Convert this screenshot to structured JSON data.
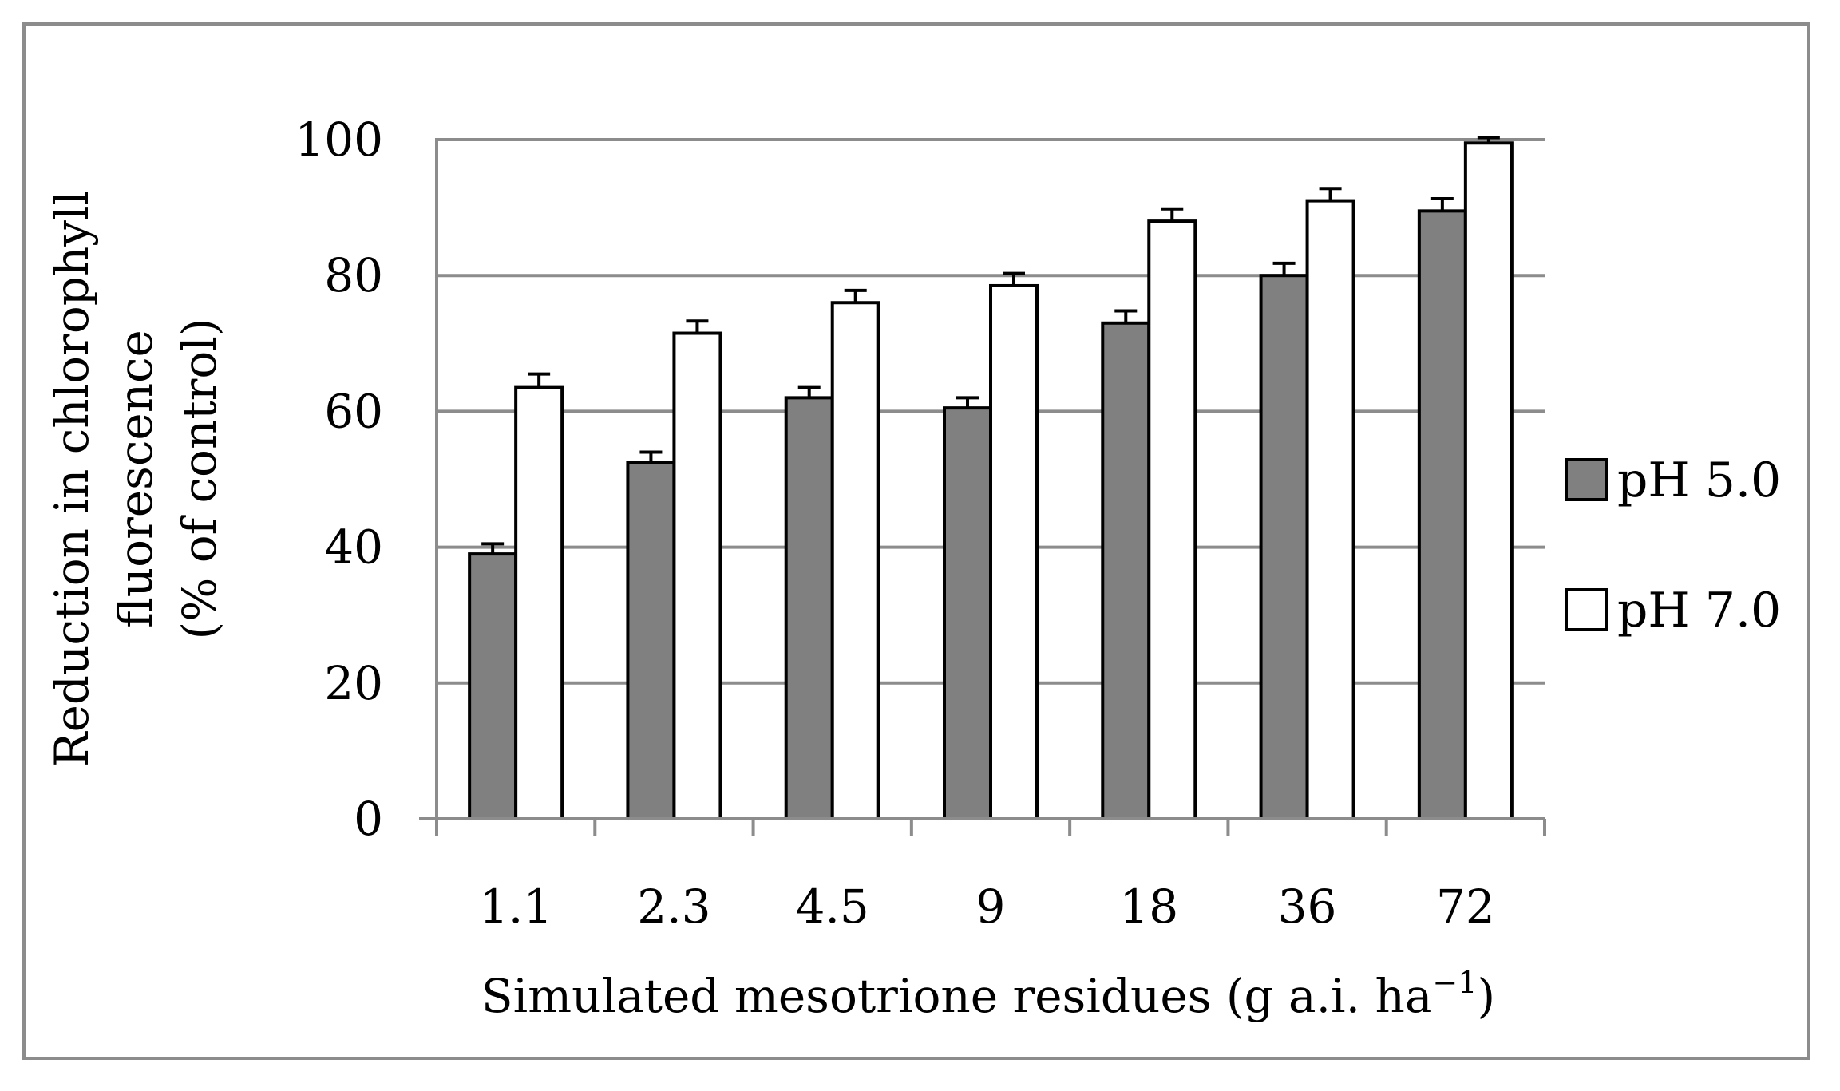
{
  "chart_data": {
    "type": "bar",
    "categories": [
      "1.1",
      "2.3",
      "4.5",
      "9",
      "18",
      "36",
      "72"
    ],
    "series": [
      {
        "name": "pH 5.0",
        "values": [
          39,
          52.5,
          62,
          60.5,
          73,
          80,
          89.5
        ],
        "errors": [
          1.5,
          1.5,
          1.5,
          1.5,
          1.8,
          1.8,
          1.8
        ],
        "color": "#808080"
      },
      {
        "name": "pH 7.0",
        "values": [
          63.5,
          71.5,
          76,
          78.5,
          88,
          91,
          99.5
        ],
        "errors": [
          2,
          1.8,
          1.8,
          1.8,
          1.8,
          1.8,
          0.8
        ],
        "color": "#ffffff"
      }
    ],
    "ylim": [
      0,
      100
    ],
    "yticks": [
      "0",
      "20",
      "40",
      "60",
      "80",
      "100"
    ],
    "ylabel_lines": [
      "Reduction in chlorophyll",
      "fluorescence",
      "(% of control)"
    ],
    "xlabel": "Simulated mesotrione residues (g a.i. ha",
    "xlabel_sup": "−1",
    "xlabel_end": ")",
    "grid": true,
    "legend_position": "right"
  }
}
